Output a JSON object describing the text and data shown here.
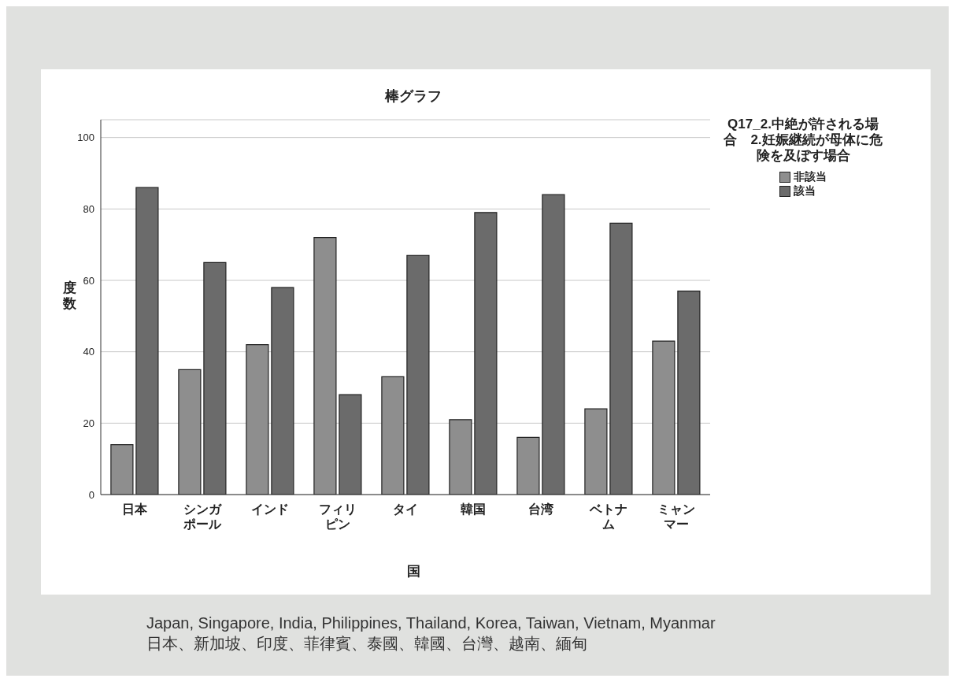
{
  "chart_data": {
    "type": "bar",
    "title": "棒グラフ",
    "xlabel": "国",
    "ylabel": "度数",
    "legend_title": "Q17_2.中絶が許される場合　2.妊娠継続が母体に危険を及ぼす場合",
    "categories": [
      "日本",
      "シンガポール",
      "インド",
      "フィリピン",
      "タイ",
      "韓国",
      "台湾",
      "ベトナム",
      "ミャンマー"
    ],
    "series": [
      {
        "name": "非該当",
        "color": "#8e8e8e",
        "values": [
          14,
          35,
          42,
          72,
          33,
          21,
          16,
          24,
          43
        ]
      },
      {
        "name": "該当",
        "color": "#6b6b6b",
        "values": [
          86,
          65,
          58,
          28,
          67,
          79,
          84,
          76,
          57
        ]
      }
    ],
    "ylim": [
      0,
      105
    ],
    "yticks": [
      0,
      20,
      40,
      60,
      80,
      100
    ],
    "grid": "y",
    "legend": "top right",
    "annotations": [
      "Japan, Singapore, India, Philippines, Thailand, Korea, Taiwan, Vietnam, Myanmar",
      "日本、新加坡、印度、菲律賓、泰國、韓國、台灣、越南、緬甸"
    ]
  }
}
